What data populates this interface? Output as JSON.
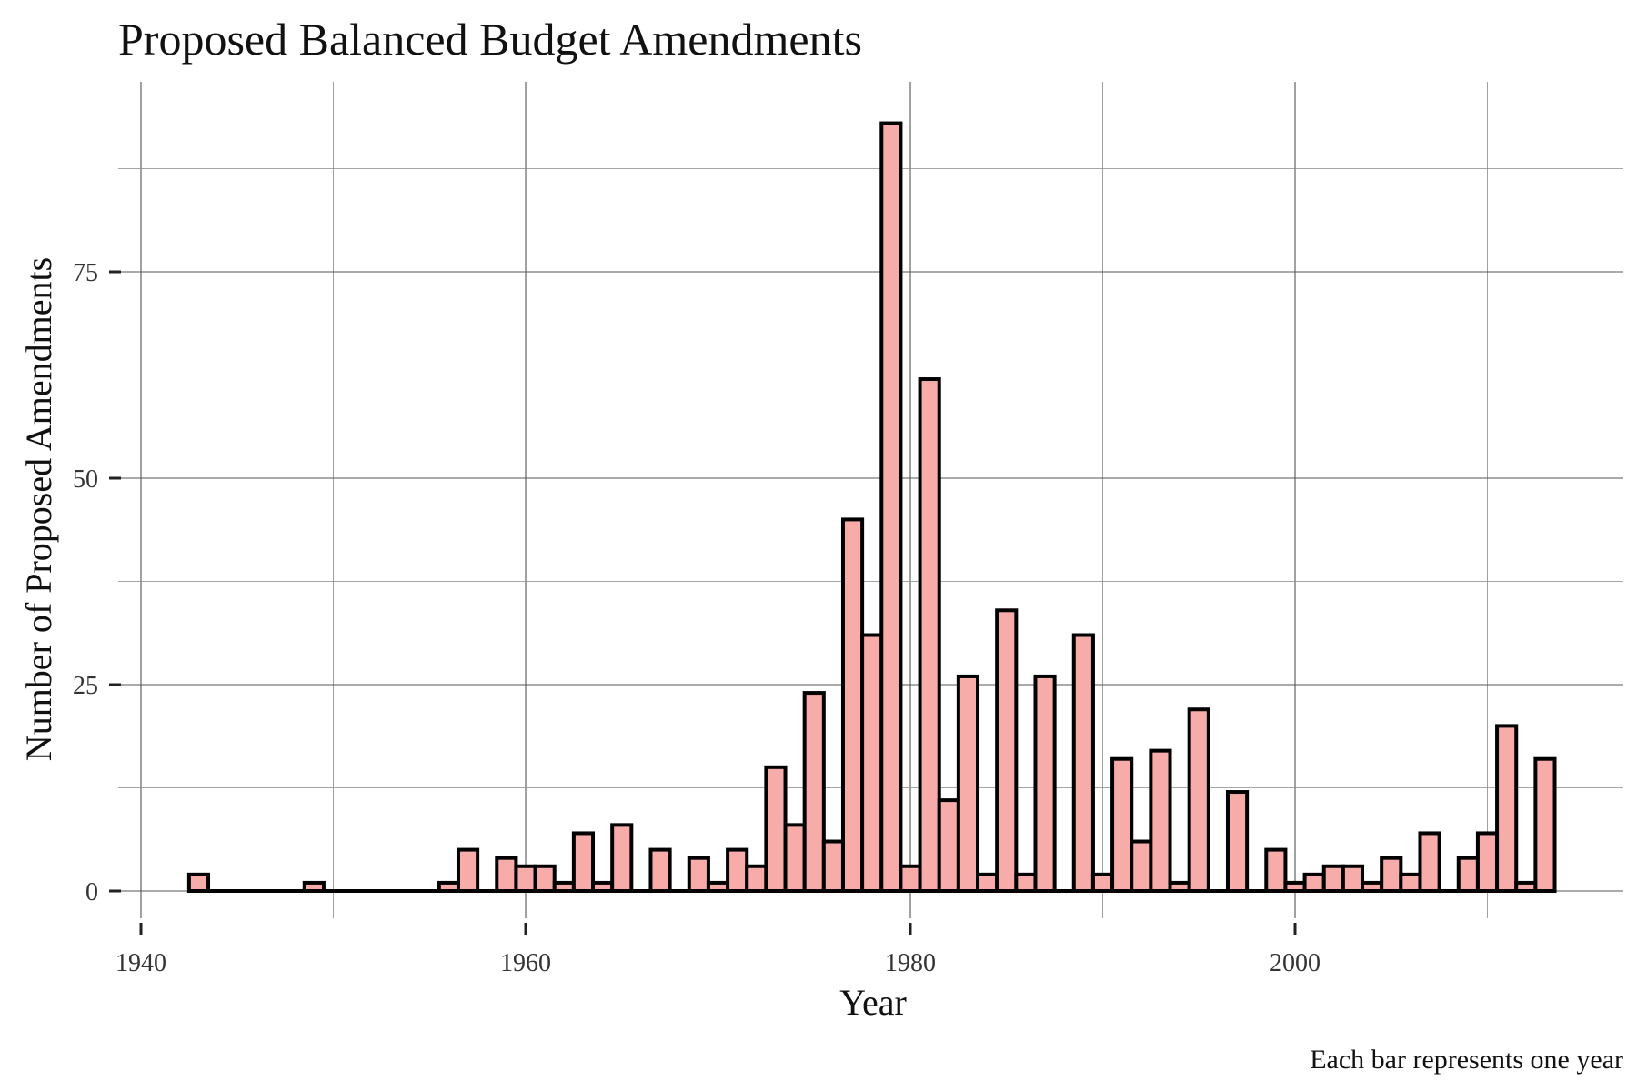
{
  "chart_data": {
    "type": "bar",
    "title": "Proposed Balanced Budget Amendments",
    "xlabel": "Year",
    "ylabel": "Number of Proposed Amendments",
    "caption": "Each bar represents one year",
    "xlim": [
      1940,
      2017
    ],
    "ylim": [
      0,
      96
    ],
    "x_ticks": [
      1940,
      1960,
      1980,
      2000
    ],
    "y_ticks": [
      0,
      25,
      50,
      75
    ],
    "grid": true,
    "legend": "none",
    "bar_fill": "#F8ACAA",
    "bar_stroke": "#000000",
    "years": [
      1943,
      1944,
      1945,
      1946,
      1947,
      1948,
      1949,
      1950,
      1951,
      1952,
      1953,
      1954,
      1955,
      1956,
      1957,
      1958,
      1959,
      1960,
      1961,
      1962,
      1963,
      1964,
      1965,
      1966,
      1967,
      1968,
      1969,
      1970,
      1971,
      1972,
      1973,
      1974,
      1975,
      1976,
      1977,
      1978,
      1979,
      1980,
      1981,
      1982,
      1983,
      1984,
      1985,
      1986,
      1987,
      1988,
      1989,
      1990,
      1991,
      1992,
      1993,
      1994,
      1995,
      1996,
      1997,
      1998,
      1999,
      2000,
      2001,
      2002,
      2003,
      2004,
      2005,
      2006,
      2007,
      2008,
      2009,
      2010,
      2011,
      2012,
      2013
    ],
    "values": [
      2,
      0,
      0,
      0,
      0,
      0,
      1,
      0,
      0,
      0,
      0,
      0,
      0,
      1,
      5,
      0,
      4,
      3,
      3,
      1,
      7,
      1,
      8,
      0,
      5,
      0,
      4,
      1,
      5,
      3,
      15,
      8,
      24,
      6,
      45,
      31,
      93,
      3,
      62,
      11,
      26,
      2,
      34,
      2,
      26,
      0,
      31,
      2,
      16,
      6,
      17,
      1,
      22,
      0,
      12,
      0,
      5,
      1,
      2,
      3,
      3,
      1,
      4,
      2,
      7,
      0,
      4,
      7,
      20,
      1,
      16
    ]
  }
}
